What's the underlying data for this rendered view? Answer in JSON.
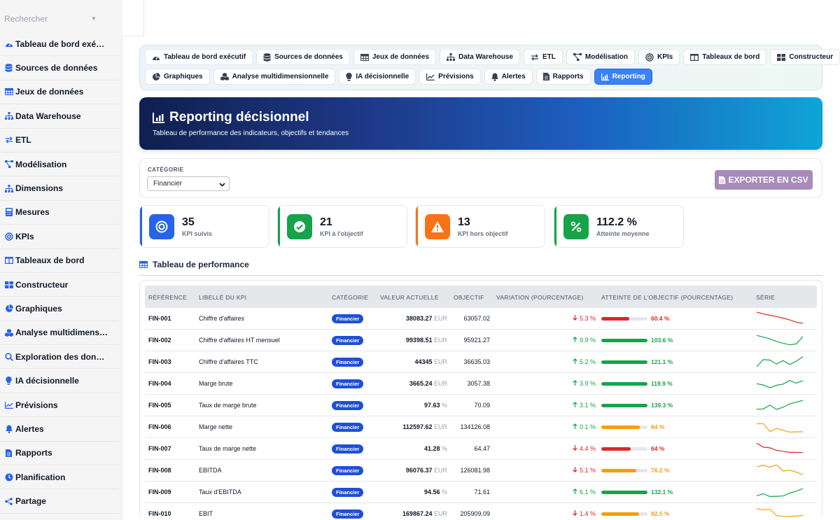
{
  "search": {
    "placeholder": "Rechercher"
  },
  "sidebar": {
    "items": [
      {
        "label": "Tableau de bord exé…",
        "icon": "gauge-icon"
      },
      {
        "label": "Sources de données",
        "icon": "database-icon"
      },
      {
        "label": "Jeux de données",
        "icon": "table-icon"
      },
      {
        "label": "Data Warehouse",
        "icon": "sitemap-icon"
      },
      {
        "label": "ETL",
        "icon": "exchange-icon"
      },
      {
        "label": "Modélisation",
        "icon": "project-diagram-icon"
      },
      {
        "label": "Dimensions",
        "icon": "hierarchy-icon"
      },
      {
        "label": "Mesures",
        "icon": "calculator-icon"
      },
      {
        "label": "KPIs",
        "icon": "target-icon"
      },
      {
        "label": "Tableaux de bord",
        "icon": "columns-icon"
      },
      {
        "label": "Constructeur",
        "icon": "grid-icon"
      },
      {
        "label": "Graphiques",
        "icon": "pie-chart-icon"
      },
      {
        "label": "Analyse multidimens…",
        "icon": "cubes-icon"
      },
      {
        "label": "Exploration des don…",
        "icon": "search-icon"
      },
      {
        "label": "IA décisionnelle",
        "icon": "lightbulb-icon"
      },
      {
        "label": "Prévisions",
        "icon": "line-chart-icon"
      },
      {
        "label": "Alertes",
        "icon": "bell-icon"
      },
      {
        "label": "Rapports",
        "icon": "file-icon"
      },
      {
        "label": "Planification",
        "icon": "clock-icon"
      },
      {
        "label": "Partage",
        "icon": "share-icon"
      }
    ]
  },
  "nav": {
    "row1": [
      {
        "label": "Tableau de bord exécutif",
        "icon": "gauge-icon"
      },
      {
        "label": "Sources de données",
        "icon": "database-icon"
      },
      {
        "label": "Jeux de données",
        "icon": "table-icon"
      },
      {
        "label": "Data Warehouse",
        "icon": "sitemap-icon"
      },
      {
        "label": "ETL",
        "icon": "exchange-icon"
      },
      {
        "label": "Modélisation",
        "icon": "project-diagram-icon"
      },
      {
        "label": "KPIs",
        "icon": "target-icon"
      },
      {
        "label": "Tableaux de bord",
        "icon": "columns-icon"
      },
      {
        "label": "Constructeur",
        "icon": "grid-icon"
      }
    ],
    "row2": [
      {
        "label": "Graphiques",
        "icon": "pie-chart-icon"
      },
      {
        "label": "Analyse multidimensionnelle",
        "icon": "cubes-icon"
      },
      {
        "label": "IA décisionnelle",
        "icon": "lightbulb-icon"
      },
      {
        "label": "Prévisions",
        "icon": "line-chart-icon"
      },
      {
        "label": "Alertes",
        "icon": "bell-icon"
      },
      {
        "label": "Rapports",
        "icon": "file-icon"
      },
      {
        "label": "Reporting",
        "icon": "bar-chart-icon",
        "active": true
      }
    ]
  },
  "hero": {
    "title": "Reporting décisionnel",
    "subtitle": "Tableau de performance des indicateurs, objectifs et tendances"
  },
  "filter": {
    "label": "CATÉGORIE",
    "selected": "Financier",
    "export_label": "EXPORTER EN CSV"
  },
  "kpis": [
    {
      "value": "35",
      "label": "KPI suivis",
      "color": "#2563eb",
      "icon": "target-icon"
    },
    {
      "value": "21",
      "label": "KPI à l'objectif",
      "color": "#16a34a",
      "icon": "check-circle-icon"
    },
    {
      "value": "13",
      "label": "KPI hors objectif",
      "color": "#f97316",
      "icon": "warning-icon"
    },
    {
      "value": "112.2 %",
      "label": "Atteinte moyenne",
      "color": "#16a34a",
      "icon": "percent-icon"
    }
  ],
  "section": {
    "title": "Tableau de performance"
  },
  "table": {
    "headers": [
      "RÉFÉRENCE",
      "LIBELLÉ DU KPI",
      "CATÉGORIE",
      "VALEUR ACTUELLE",
      "OBJECTIF",
      "VARIATION (POURCENTAGE)",
      "ATTEINTE DE L'OBJECTIF (POURCENTAGE)",
      "SÉRIE"
    ],
    "rows": [
      {
        "ref": "FIN-001",
        "label": "Chiffre d'affaires",
        "category": "Financier",
        "value": "38083.27",
        "unit": "EUR",
        "target": "63057.02",
        "direction": "down",
        "variation": "5.3 %",
        "attainment": "60.4 %",
        "attainment_pct": 60.4,
        "status": "red",
        "series": [
          10,
          9.2,
          8.6,
          8.1,
          7.4,
          6.6,
          5.6,
          5.1
        ]
      },
      {
        "ref": "FIN-002",
        "label": "Chiffre d'affaires HT mensuel",
        "category": "Financier",
        "value": "99398.51",
        "unit": "EUR",
        "target": "95921.27",
        "direction": "up",
        "variation": "9.9 %",
        "attainment": "103.6 %",
        "attainment_pct": 103.6,
        "status": "green",
        "series": [
          9.3,
          8.6,
          7.8,
          6.7,
          5.9,
          5.2,
          5.6,
          8.8
        ]
      },
      {
        "ref": "FIN-003",
        "label": "Chiffre d'affaires TTC",
        "category": "Financier",
        "value": "44345",
        "unit": "EUR",
        "target": "36635.03",
        "direction": "up",
        "variation": "5.2 %",
        "attainment": "121.1 %",
        "attainment_pct": 121.1,
        "status": "green",
        "series": [
          5.1,
          8.2,
          8.0,
          6.3,
          7.8,
          6.1,
          7.5,
          9.5
        ]
      },
      {
        "ref": "FIN-004",
        "label": "Marge brute",
        "category": "Financier",
        "value": "3665.24",
        "unit": "EUR",
        "target": "3057.38",
        "direction": "up",
        "variation": "3.9 %",
        "attainment": "119.9 %",
        "attainment_pct": 119.9,
        "status": "green",
        "series": [
          7.2,
          6.6,
          5.4,
          6.5,
          7.0,
          8.6,
          7.4,
          8.5
        ]
      },
      {
        "ref": "FIN-005",
        "label": "Taux de marge brute",
        "category": "Financier",
        "value": "97.63",
        "unit": "%",
        "target": "70.09",
        "direction": "up",
        "variation": "3.1 %",
        "attainment": "139.3 %",
        "attainment_pct": 139.3,
        "status": "green",
        "series": [
          5.5,
          5.6,
          7.3,
          5.4,
          6.4,
          7.8,
          8.6,
          9.4
        ]
      },
      {
        "ref": "FIN-006",
        "label": "Marge nette",
        "category": "Financier",
        "value": "112597.62",
        "unit": "EUR",
        "target": "134126.08",
        "direction": "up",
        "variation": "0.1 %",
        "attainment": "84 %",
        "attainment_pct": 84,
        "status": "orange",
        "series": [
          8.6,
          8.7,
          5.2,
          6.6,
          5.8,
          5.0,
          5.1,
          5.1
        ]
      },
      {
        "ref": "FIN-007",
        "label": "Taux de marge nette",
        "category": "Financier",
        "value": "41.28",
        "unit": "%",
        "target": "64.47",
        "direction": "down",
        "variation": "4.4 %",
        "attainment": "64 %",
        "attainment_pct": 64,
        "status": "red",
        "series": [
          9.6,
          7.9,
          7.6,
          6.5,
          6.1,
          5.6,
          5.6,
          5.5
        ]
      },
      {
        "ref": "FIN-008",
        "label": "EBITDA",
        "category": "Financier",
        "value": "96076.37",
        "unit": "EUR",
        "target": "126081.98",
        "direction": "down",
        "variation": "5.1 %",
        "attainment": "76.2 %",
        "attainment_pct": 76.2,
        "status": "orange",
        "series": [
          8.8,
          9.5,
          8.6,
          9.6,
          6.9,
          7.3,
          6.5,
          5.3
        ]
      },
      {
        "ref": "FIN-009",
        "label": "Taux d'EBITDA",
        "category": "Financier",
        "value": "94.56",
        "unit": "%",
        "target": "71.61",
        "direction": "up",
        "variation": "6.1 %",
        "attainment": "132.1 %",
        "attainment_pct": 132.1,
        "status": "green",
        "series": [
          5.6,
          6.5,
          5.3,
          5.4,
          5.5,
          6.8,
          7.6,
          8.8
        ]
      },
      {
        "ref": "FIN-010",
        "label": "EBIT",
        "category": "Financier",
        "value": "169867.24",
        "unit": "EUR",
        "target": "205909.09",
        "direction": "down",
        "variation": "1.4 %",
        "attainment": "82.5 %",
        "attainment_pct": 82.5,
        "status": "orange",
        "series": [
          9.4,
          9.0,
          9.2,
          6.4,
          6.1,
          6.0,
          6.2,
          6.5
        ]
      }
    ]
  },
  "colors": {
    "red": "#dc2626",
    "green": "#16a34a",
    "orange": "#f59e0b",
    "badge": "#1e4fd6",
    "accent": "#3b82f6"
  }
}
